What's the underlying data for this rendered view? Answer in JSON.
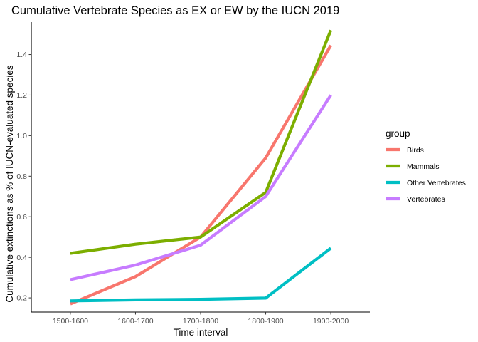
{
  "chart_data": {
    "type": "line",
    "title": "Cumulative Vertebrate Species as EX or EW by the IUCN 2019",
    "xlabel": "Time interval",
    "ylabel": "Cumulative extinctions as % of IUCN-evaluated species",
    "categories": [
      "1500-1600",
      "1600-1700",
      "1700-1800",
      "1800-1900",
      "1900-2000"
    ],
    "yticks": [
      0.2,
      0.4,
      0.6,
      0.8,
      1.0,
      1.2,
      1.4
    ],
    "ytick_labels": [
      "0.2",
      "0.4",
      "0.6",
      "0.8",
      "1.0",
      "1.2",
      "1.4"
    ],
    "ylim": [
      0.13,
      1.56
    ],
    "grid": false,
    "legend": {
      "title": "group",
      "position": "right"
    },
    "series": [
      {
        "name": "Birds",
        "color": "#F8766D",
        "values": [
          0.17,
          0.305,
          0.5,
          0.89,
          1.445
        ]
      },
      {
        "name": "Mammals",
        "color": "#7CAE00",
        "values": [
          0.42,
          0.465,
          0.5,
          0.72,
          1.52
        ]
      },
      {
        "name": "Other Vertebrates",
        "color": "#00BFC4",
        "values": [
          0.185,
          0.19,
          0.193,
          0.199,
          0.445
        ]
      },
      {
        "name": "Vertebrates",
        "color": "#C77CFF",
        "values": [
          0.29,
          0.362,
          0.46,
          0.7,
          1.2
        ]
      }
    ]
  }
}
